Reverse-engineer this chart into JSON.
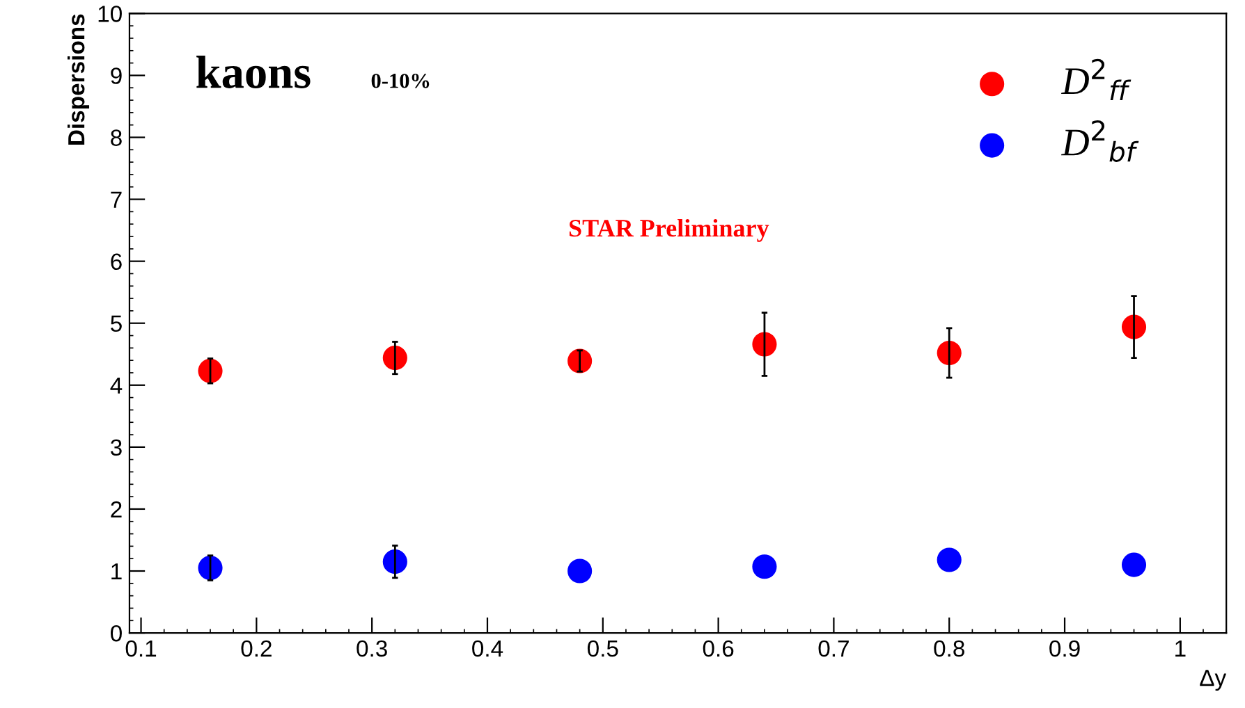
{
  "chart_data": {
    "type": "scatter",
    "ylabel": "Dispersions",
    "xlabel": "Δy",
    "x": [
      0.16,
      0.32,
      0.48,
      0.64,
      0.8,
      0.96
    ],
    "series": [
      {
        "name": "D$^{2}$$_{ff}$",
        "color": "#ff0000",
        "values": [
          4.23,
          4.44,
          4.39,
          4.66,
          4.52,
          4.94
        ],
        "errors": [
          0.2,
          0.26,
          0.17,
          0.51,
          0.4,
          0.5
        ]
      },
      {
        "name": "D$^{2}$$_{bf}$",
        "color": "#0000ff",
        "values": [
          1.05,
          1.15,
          1.0,
          1.07,
          1.18,
          1.1
        ],
        "errors": [
          0.2,
          0.26,
          null,
          null,
          null,
          null
        ]
      }
    ],
    "annotations": [
      "kaons",
      "0-10%",
      "STAR Preliminary"
    ],
    "xlim": [
      0.09,
      1.04
    ],
    "xticks": [
      0.1,
      0.2,
      0.3,
      0.4,
      0.5,
      0.6,
      0.7,
      0.8,
      0.9,
      1
    ],
    "ylim": [
      0,
      10
    ],
    "yticks": [
      0,
      1,
      2,
      3,
      4,
      5,
      6,
      7,
      8,
      9,
      10
    ],
    "grid": false,
    "legend": "top right",
    "marker": "circle"
  }
}
